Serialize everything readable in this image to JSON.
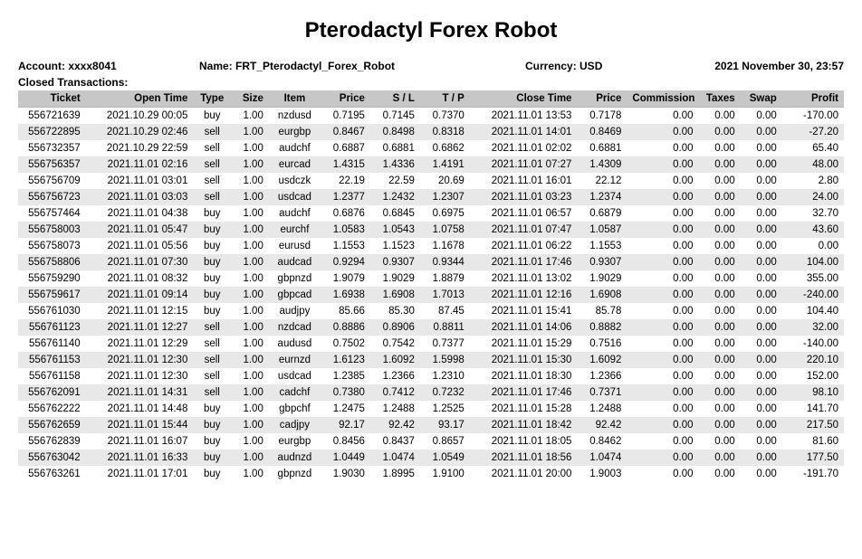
{
  "title": "Pterodactyl Forex Robot",
  "meta": {
    "account_label": "Account: xxxx8041",
    "name_label": "Name: FRT_Pterodactyl_Forex_Robot",
    "currency_label": "Currency: USD",
    "date_label": "2021 November 30, 23:57",
    "closed_label": "Closed Transactions:"
  },
  "columns": [
    "Ticket",
    "Open Time",
    "Type",
    "Size",
    "Item",
    "Price",
    "S / L",
    "T / P",
    "Close Time",
    "Price",
    "Commission",
    "Taxes",
    "Swap",
    "Profit"
  ],
  "rows": [
    [
      "556721639",
      "2021.10.29 00:05",
      "buy",
      "1.00",
      "nzdusd",
      "0.7195",
      "0.7145",
      "0.7370",
      "2021.11.01 13:53",
      "0.7178",
      "0.00",
      "0.00",
      "0.00",
      "-170.00"
    ],
    [
      "556722895",
      "2021.10.29 02:46",
      "sell",
      "1.00",
      "eurgbp",
      "0.8467",
      "0.8498",
      "0.8318",
      "2021.11.01 14:01",
      "0.8469",
      "0.00",
      "0.00",
      "0.00",
      "-27.20"
    ],
    [
      "556732357",
      "2021.10.29 22:59",
      "sell",
      "1.00",
      "audchf",
      "0.6887",
      "0.6881",
      "0.6862",
      "2021.11.01 02:02",
      "0.6881",
      "0.00",
      "0.00",
      "0.00",
      "65.40"
    ],
    [
      "556756357",
      "2021.11.01 02:16",
      "sell",
      "1.00",
      "eurcad",
      "1.4315",
      "1.4336",
      "1.4191",
      "2021.11.01 07:27",
      "1.4309",
      "0.00",
      "0.00",
      "0.00",
      "48.00"
    ],
    [
      "556756709",
      "2021.11.01 03:01",
      "sell",
      "1.00",
      "usdczk",
      "22.19",
      "22.59",
      "20.69",
      "2021.11.01 16:01",
      "22.12",
      "0.00",
      "0.00",
      "0.00",
      "2.80"
    ],
    [
      "556756723",
      "2021.11.01 03:03",
      "sell",
      "1.00",
      "usdcad",
      "1.2377",
      "1.2432",
      "1.2307",
      "2021.11.01 03:23",
      "1.2374",
      "0.00",
      "0.00",
      "0.00",
      "24.00"
    ],
    [
      "556757464",
      "2021.11.01 04:38",
      "buy",
      "1.00",
      "audchf",
      "0.6876",
      "0.6845",
      "0.6975",
      "2021.11.01 06:57",
      "0.6879",
      "0.00",
      "0.00",
      "0.00",
      "32.70"
    ],
    [
      "556758003",
      "2021.11.01 05:47",
      "buy",
      "1.00",
      "eurchf",
      "1.0583",
      "1.0543",
      "1.0758",
      "2021.11.01 07:47",
      "1.0587",
      "0.00",
      "0.00",
      "0.00",
      "43.60"
    ],
    [
      "556758073",
      "2021.11.01 05:56",
      "buy",
      "1.00",
      "eurusd",
      "1.1553",
      "1.1523",
      "1.1678",
      "2021.11.01 06:22",
      "1.1553",
      "0.00",
      "0.00",
      "0.00",
      "0.00"
    ],
    [
      "556758806",
      "2021.11.01 07:30",
      "buy",
      "1.00",
      "audcad",
      "0.9294",
      "0.9307",
      "0.9344",
      "2021.11.01 17:46",
      "0.9307",
      "0.00",
      "0.00",
      "0.00",
      "104.00"
    ],
    [
      "556759290",
      "2021.11.01 08:32",
      "buy",
      "1.00",
      "gbpnzd",
      "1.9079",
      "1.9029",
      "1.8879",
      "2021.11.01 13:02",
      "1.9029",
      "0.00",
      "0.00",
      "0.00",
      "355.00"
    ],
    [
      "556759617",
      "2021.11.01 09:14",
      "buy",
      "1.00",
      "gbpcad",
      "1.6938",
      "1.6908",
      "1.7013",
      "2021.11.01 12:16",
      "1.6908",
      "0.00",
      "0.00",
      "0.00",
      "-240.00"
    ],
    [
      "556761030",
      "2021.11.01 12:15",
      "buy",
      "1.00",
      "audjpy",
      "85.66",
      "85.30",
      "87.45",
      "2021.11.01 15:41",
      "85.78",
      "0.00",
      "0.00",
      "0.00",
      "104.40"
    ],
    [
      "556761123",
      "2021.11.01 12:27",
      "sell",
      "1.00",
      "nzdcad",
      "0.8886",
      "0.8906",
      "0.8811",
      "2021.11.01 14:06",
      "0.8882",
      "0.00",
      "0.00",
      "0.00",
      "32.00"
    ],
    [
      "556761140",
      "2021.11.01 12:29",
      "sell",
      "1.00",
      "audusd",
      "0.7502",
      "0.7542",
      "0.7377",
      "2021.11.01 15:29",
      "0.7516",
      "0.00",
      "0.00",
      "0.00",
      "-140.00"
    ],
    [
      "556761153",
      "2021.11.01 12:30",
      "sell",
      "1.00",
      "eurnzd",
      "1.6123",
      "1.6092",
      "1.5998",
      "2021.11.01 15:30",
      "1.6092",
      "0.00",
      "0.00",
      "0.00",
      "220.10"
    ],
    [
      "556761158",
      "2021.11.01 12:30",
      "sell",
      "1.00",
      "usdcad",
      "1.2385",
      "1.2366",
      "1.2310",
      "2021.11.01 18:30",
      "1.2366",
      "0.00",
      "0.00",
      "0.00",
      "152.00"
    ],
    [
      "556762091",
      "2021.11.01 14:31",
      "sell",
      "1.00",
      "cadchf",
      "0.7380",
      "0.7412",
      "0.7232",
      "2021.11.01 17:46",
      "0.7371",
      "0.00",
      "0.00",
      "0.00",
      "98.10"
    ],
    [
      "556762222",
      "2021.11.01 14:48",
      "buy",
      "1.00",
      "gbpchf",
      "1.2475",
      "1.2488",
      "1.2525",
      "2021.11.01 15:28",
      "1.2488",
      "0.00",
      "0.00",
      "0.00",
      "141.70"
    ],
    [
      "556762659",
      "2021.11.01 15:44",
      "buy",
      "1.00",
      "cadjpy",
      "92.17",
      "92.42",
      "93.17",
      "2021.11.01 18:42",
      "92.42",
      "0.00",
      "0.00",
      "0.00",
      "217.50"
    ],
    [
      "556762839",
      "2021.11.01 16:07",
      "buy",
      "1.00",
      "eurgbp",
      "0.8456",
      "0.8437",
      "0.8657",
      "2021.11.01 18:05",
      "0.8462",
      "0.00",
      "0.00",
      "0.00",
      "81.60"
    ],
    [
      "556763042",
      "2021.11.01 16:33",
      "buy",
      "1.00",
      "audnzd",
      "1.0449",
      "1.0474",
      "1.0549",
      "2021.11.01 18:56",
      "1.0474",
      "0.00",
      "0.00",
      "0.00",
      "177.50"
    ],
    [
      "556763261",
      "2021.11.01 17:01",
      "buy",
      "1.00",
      "gbpnzd",
      "1.9030",
      "1.8995",
      "1.9100",
      "2021.11.01 20:00",
      "1.9003",
      "0.00",
      "0.00",
      "0.00",
      "-191.70"
    ]
  ],
  "colClasses": [
    "c-ticket",
    "c-opentime",
    "c-type",
    "c-size",
    "c-item",
    "c-price",
    "c-sl",
    "c-tp",
    "c-closetime",
    "c-price2",
    "c-comm",
    "c-taxes",
    "c-swap",
    "c-profit"
  ]
}
